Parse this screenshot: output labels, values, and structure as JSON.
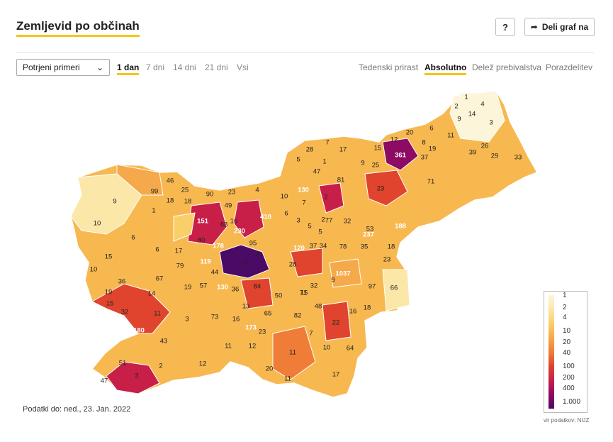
{
  "header": {
    "title": "Zemljevid po občinah",
    "help_label": "?",
    "share_label": "Deli graf na",
    "share_icon": "share-arrow-icon"
  },
  "controls": {
    "metric_select": "Potrjeni primeri",
    "periods": [
      "1 dan",
      "7 dni",
      "14 dni",
      "21 dni",
      "Vsi"
    ],
    "active_period": "1 dan",
    "modes": [
      "Tedenski prirast",
      "Absolutno",
      "Delež prebivalstva",
      "Porazdelitev"
    ],
    "active_mode": "Absolutno"
  },
  "map": {
    "values": [
      "1",
      "2",
      "4",
      "9",
      "14",
      "3",
      "6",
      "20",
      "12",
      "8",
      "15",
      "11",
      "19",
      "361",
      "37",
      "71",
      "39",
      "26",
      "29",
      "33",
      "7",
      "28",
      "17",
      "1",
      "9",
      "25",
      "5",
      "47",
      "81",
      "23",
      "130",
      "46",
      "99",
      "18",
      "18",
      "25",
      "90",
      "23",
      "49",
      "2",
      "32",
      "237",
      "188",
      "151",
      "88",
      "16",
      "410",
      "77",
      "80",
      "178",
      "95",
      "230",
      "79",
      "120",
      "37",
      "34",
      "78",
      "53",
      "35",
      "18",
      "71",
      "4",
      "28",
      "1037",
      "23",
      "119",
      "44",
      "17",
      "6",
      "36",
      "14",
      "67",
      "19",
      "57",
      "130",
      "36",
      "84",
      "50",
      "71",
      "32",
      "97",
      "66",
      "11",
      "3",
      "73",
      "13",
      "65",
      "82",
      "48",
      "22",
      "16",
      "18",
      "16",
      "173",
      "23",
      "15",
      "7",
      "10",
      "64",
      "11",
      "17",
      "11",
      "20",
      "51",
      "47",
      "3",
      "2",
      "12",
      "11",
      "12",
      "180",
      "43",
      "19",
      "15",
      "32",
      "10",
      "6",
      "15",
      "10",
      "9",
      "1",
      "4",
      "10",
      "7",
      "6",
      "3",
      "5",
      "5",
      "2",
      "9"
    ]
  },
  "legend": {
    "labels": [
      "1",
      "2",
      "4",
      "10",
      "20",
      "40",
      "100",
      "200",
      "400",
      "1.000"
    ]
  },
  "colors": {
    "scale": [
      "#fdf5d9",
      "#fbe7a8",
      "#f9cf6a",
      "#f6a94a",
      "#ef7d37",
      "#e0442e",
      "#c81f48",
      "#8e0b63",
      "#4a0a66"
    ],
    "accent": "#f5c518"
  },
  "footer": {
    "data_date": "Podatki do: ned., 23. Jan. 2022",
    "source": "vir podatkov: NIJZ"
  }
}
